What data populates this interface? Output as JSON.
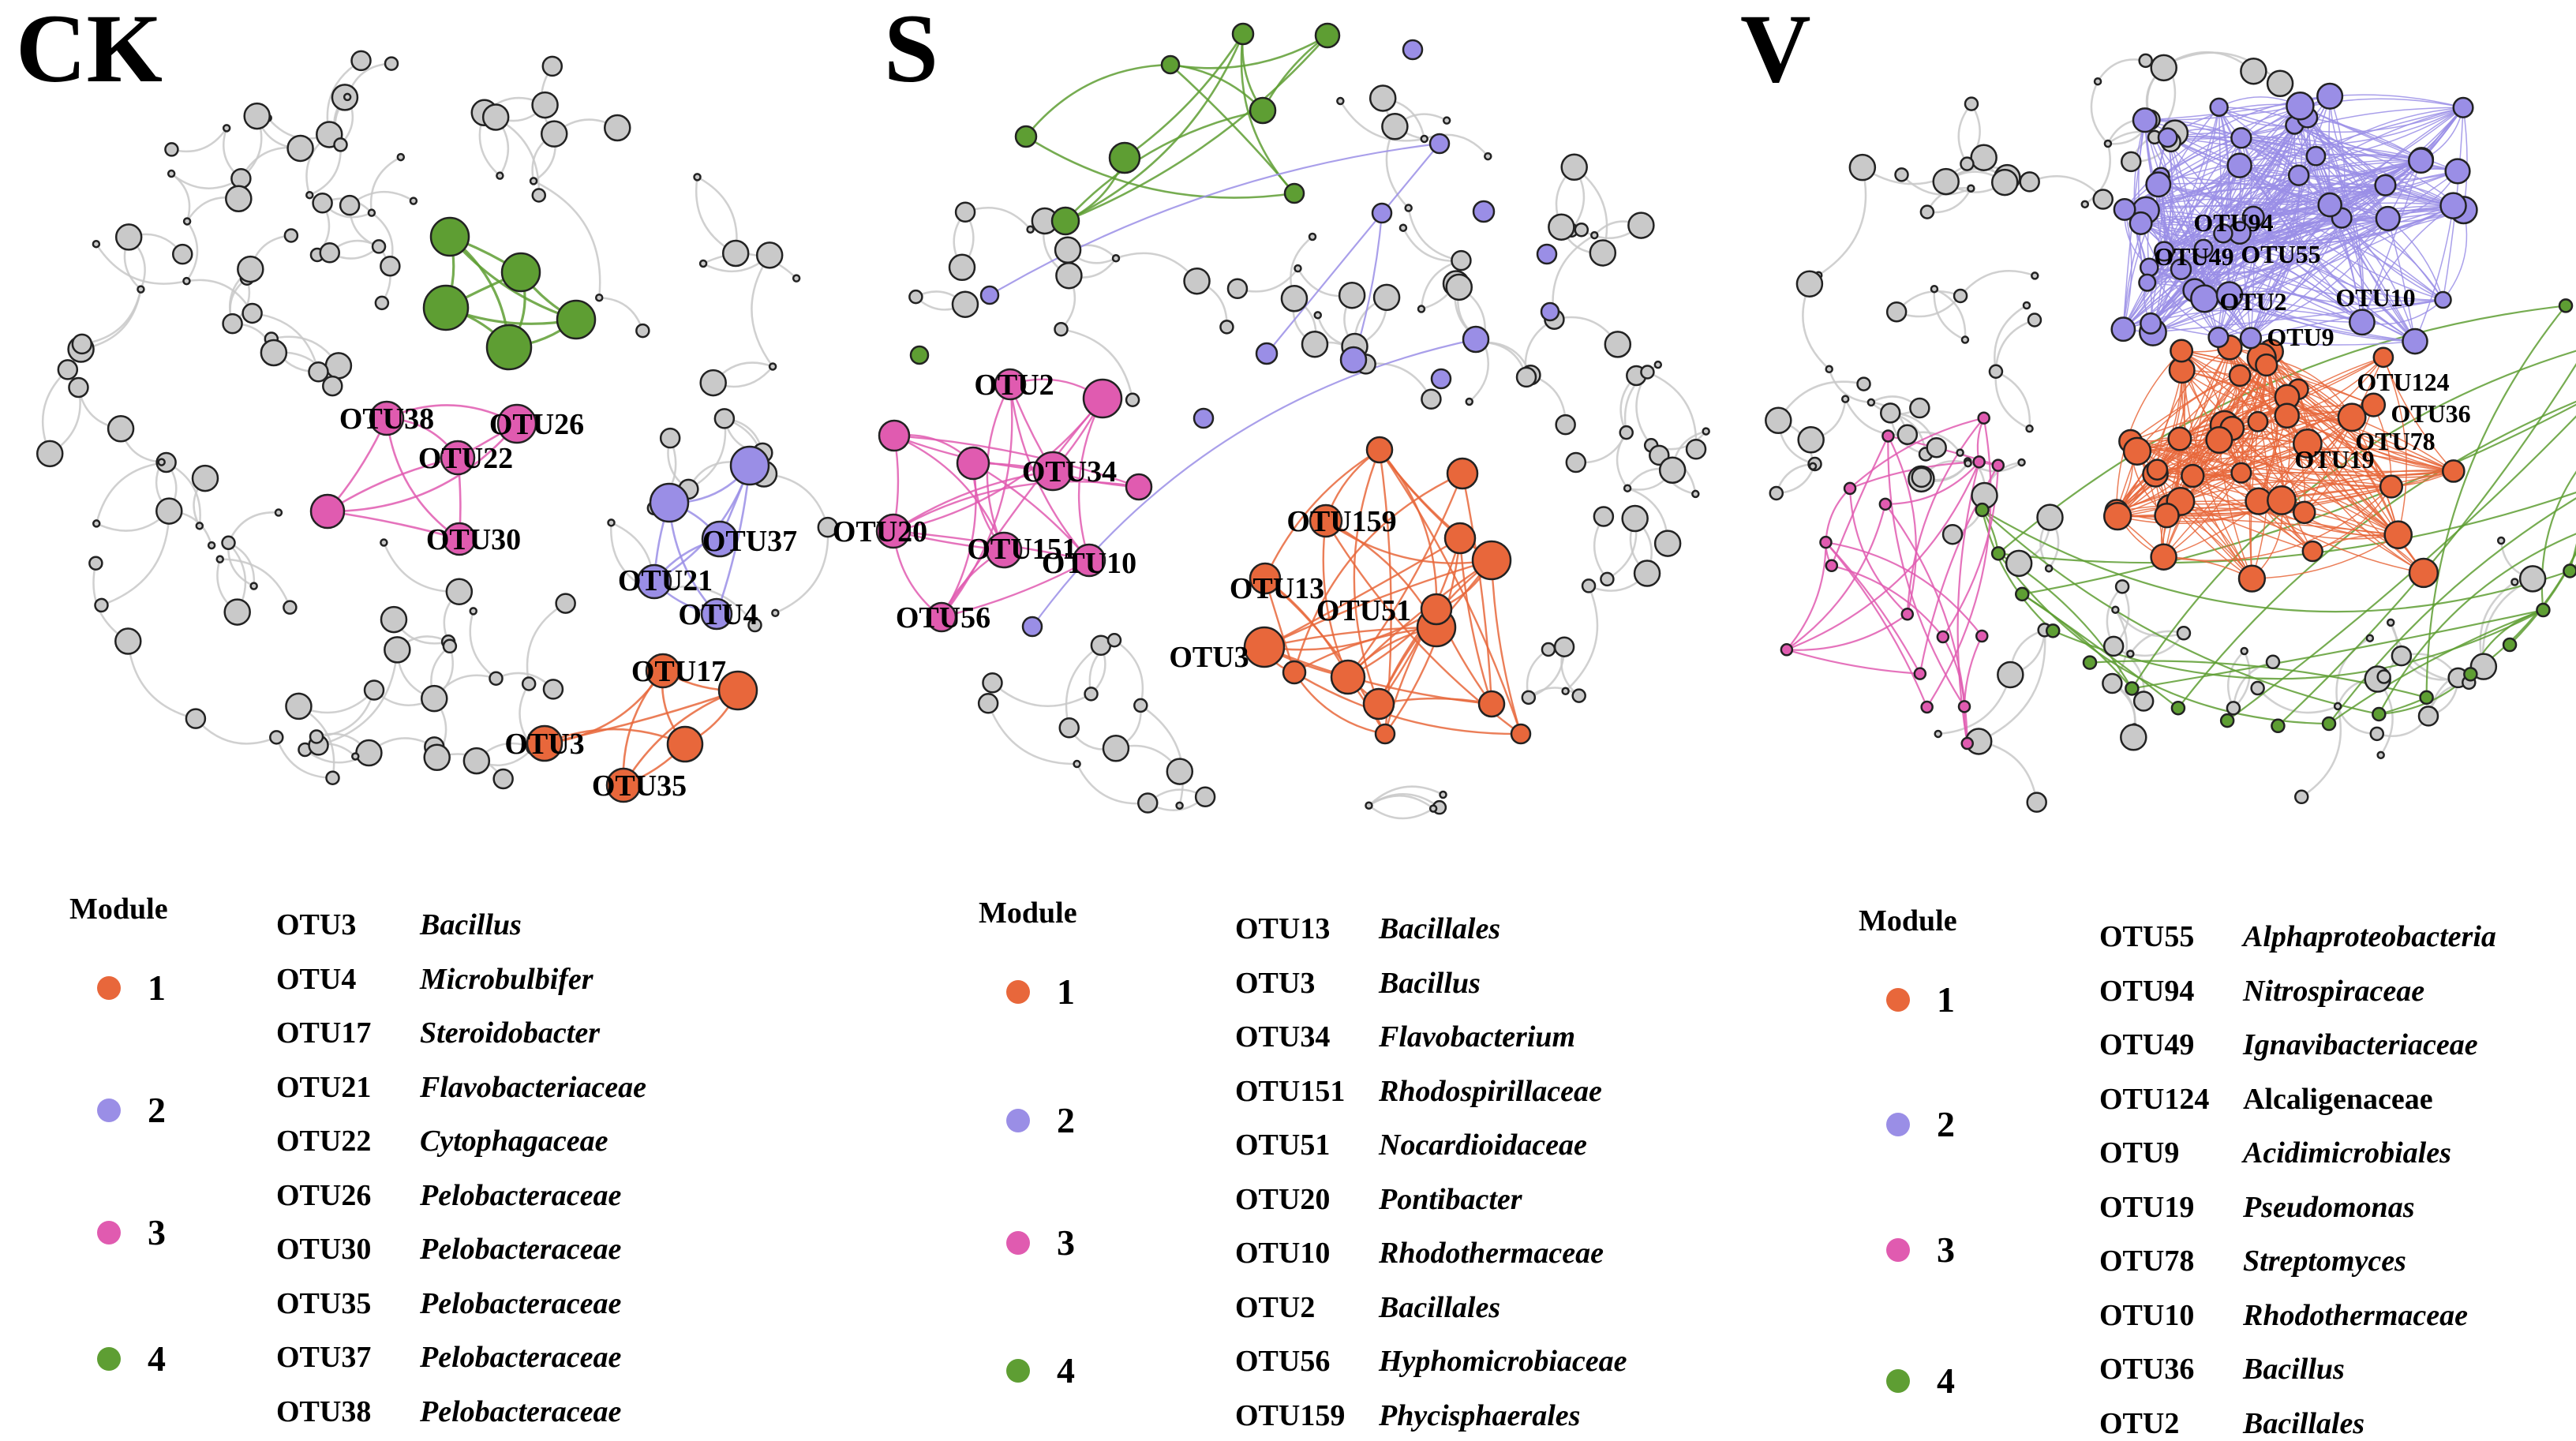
{
  "colors": {
    "module_1": "#e8673b",
    "module_2": "#9a8ee6",
    "module_3": "#e05bb0",
    "module_4": "#5e9e33",
    "background_node": "#c9c9c9",
    "background_edge": "#c8c8c8"
  },
  "legend_heading": "Module",
  "modules": [
    {
      "number": "1",
      "color": "#e8673b"
    },
    {
      "number": "2",
      "color": "#9a8ee6"
    },
    {
      "number": "3",
      "color": "#e05bb0"
    },
    {
      "number": "4",
      "color": "#5e9e33"
    }
  ],
  "panels": [
    {
      "title": "CK",
      "node_labels": [
        "OTU38",
        "OTU26",
        "OTU22",
        "OTU30",
        "OTU37",
        "OTU21",
        "OTU4",
        "OTU17",
        "OTU3",
        "OTU35"
      ],
      "otu_table": [
        {
          "id": "OTU3",
          "taxon": "Bacillus"
        },
        {
          "id": "OTU4",
          "taxon": "Microbulbifer"
        },
        {
          "id": "OTU17",
          "taxon": "Steroidobacter"
        },
        {
          "id": "OTU21",
          "taxon": "Flavobacteriaceae"
        },
        {
          "id": "OTU22",
          "taxon": "Cytophagaceae"
        },
        {
          "id": "OTU26",
          "taxon": "Pelobacteraceae"
        },
        {
          "id": "OTU30",
          "taxon": "Pelobacteraceae"
        },
        {
          "id": "OTU35",
          "taxon": "Pelobacteraceae"
        },
        {
          "id": "OTU37",
          "taxon": "Pelobacteraceae"
        },
        {
          "id": "OTU38",
          "taxon": "Pelobacteraceae"
        }
      ]
    },
    {
      "title": "S",
      "node_labels": [
        "OTU2",
        "OTU34",
        "OTU20",
        "OTU151",
        "OTU10",
        "OTU56",
        "OTU159",
        "OTU13",
        "OTU51",
        "OTU3"
      ],
      "otu_table": [
        {
          "id": "OTU13",
          "taxon": "Bacillales"
        },
        {
          "id": "OTU3",
          "taxon": "Bacillus"
        },
        {
          "id": "OTU34",
          "taxon": "Flavobacterium"
        },
        {
          "id": "OTU151",
          "taxon": "Rhodospirillaceae"
        },
        {
          "id": "OTU51",
          "taxon": "Nocardioidaceae"
        },
        {
          "id": "OTU20",
          "taxon": "Pontibacter"
        },
        {
          "id": "OTU10",
          "taxon": "Rhodothermaceae"
        },
        {
          "id": "OTU2",
          "taxon": "Bacillales"
        },
        {
          "id": "OTU56",
          "taxon": "Hyphomicrobiaceae"
        },
        {
          "id": "OTU159",
          "taxon": "Phycisphaerales"
        }
      ]
    },
    {
      "title": "V",
      "node_labels": [
        "OTU94",
        "OTU49",
        "OTU55",
        "OTU2",
        "OTU10",
        "OTU9",
        "OTU124",
        "OTU36",
        "OTU78",
        "OTU19"
      ],
      "otu_table": [
        {
          "id": "OTU55",
          "taxon": "Alphaproteobacteria"
        },
        {
          "id": "OTU94",
          "taxon": "Nitrospiraceae"
        },
        {
          "id": "OTU49",
          "taxon": "Ignavibacteriaceae"
        },
        {
          "id": "OTU124",
          "taxon": "Alcaligenaceae"
        },
        {
          "id": "OTU9",
          "taxon": "Acidimicrobiales"
        },
        {
          "id": "OTU19",
          "taxon": "Pseudomonas"
        },
        {
          "id": "OTU78",
          "taxon": "Streptomyces"
        },
        {
          "id": "OTU10",
          "taxon": "Rhodothermaceae"
        },
        {
          "id": "OTU36",
          "taxon": "Bacillus"
        },
        {
          "id": "OTU2",
          "taxon": "Bacillales"
        }
      ]
    }
  ]
}
